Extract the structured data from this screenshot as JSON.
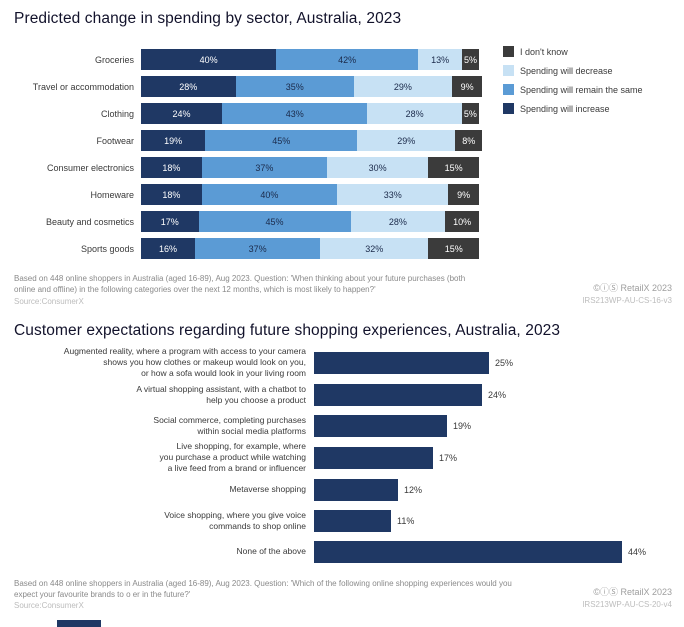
{
  "colors": {
    "increase": "#1f3864",
    "remain": "#5b9bd5",
    "decrease": "#c7e1f4",
    "dont_know": "#3b3b3b",
    "bar": "#1f3864"
  },
  "chart1": {
    "title": "Predicted change in spending by sector, Australia, 2023",
    "footnote": "Based on 448 online shoppers in Australia (aged 16-89), Aug 2023. Question: 'When thinking about your future purchases (both online and offline) in the following categories over the next 12 months, which is most likely to happen?'",
    "source": "Source:ConsumerX",
    "attribution": "©ⓘⓈ RetailX 2023",
    "code": "IRS213WP-AU-CS-16-v3"
  },
  "chart2": {
    "title": "Customer expectations regarding future shopping experiences, Australia, 2023",
    "footnote": "Based on 448 online shoppers in Australia (aged 16-89), Aug 2023. Question: 'Which of the following online shopping experiences would you expect your favourite brands to o er in the future?'",
    "source": "Source:ConsumerX",
    "attribution": "©ⓘⓈ RetailX 2023",
    "code": "IRS213WP-AU-CS-20-v4"
  },
  "chart_data": [
    {
      "type": "bar",
      "subtype": "horizontal-stacked-100",
      "title": "Predicted change in spending by sector, Australia, 2023",
      "categories": [
        "Groceries",
        "Travel or accommodation",
        "Clothing",
        "Footwear",
        "Consumer electronics",
        "Homeware",
        "Beauty and cosmetics",
        "Sports goods"
      ],
      "series": [
        {
          "name": "Spending will increase",
          "color": "#1f3864",
          "text_color": "#ffffff",
          "values": [
            40,
            28,
            24,
            19,
            18,
            18,
            17,
            16
          ]
        },
        {
          "name": "Spending will remain the same",
          "color": "#5b9bd5",
          "text_color": "#1b2a4a",
          "values": [
            42,
            35,
            43,
            45,
            37,
            40,
            45,
            37
          ]
        },
        {
          "name": "Spending will decrease",
          "color": "#c7e1f4",
          "text_color": "#1b2a4a",
          "values": [
            13,
            29,
            28,
            29,
            30,
            33,
            28,
            32
          ]
        },
        {
          "name": "I don't know",
          "color": "#3b3b3b",
          "text_color": "#ffffff",
          "values": [
            5,
            9,
            5,
            8,
            15,
            9,
            10,
            15
          ]
        }
      ],
      "legend": [
        {
          "label": "I don't know",
          "color": "#3b3b3b"
        },
        {
          "label": "Spending will decrease",
          "color": "#c7e1f4"
        },
        {
          "label": "Spending will remain the same",
          "color": "#5b9bd5"
        },
        {
          "label": "Spending will increase",
          "color": "#1f3864"
        }
      ],
      "legend_position": "top-right",
      "value_suffix": "%",
      "xlim": [
        0,
        100
      ]
    },
    {
      "type": "bar",
      "subtype": "horizontal",
      "title": "Customer expectations regarding future shopping experiences, Australia, 2023",
      "categories": [
        "Augmented reality, where a program with access to your camera shows you how clothes or makeup would look on you, or how a sofa would look in your living room",
        "A virtual shopping assistant, with a chatbot to help you choose a product",
        "Social commerce, completing purchases within social media platforms",
        "Live shopping, for example, where you purchase a product while watching a live feed from a brand or influencer",
        "Metaverse shopping",
        "Voice shopping, where you give voice commands to shop online",
        "None of the above"
      ],
      "categories_lines": [
        [
          "Augmented reality, where a program with access to  your camera",
          "shows you how clothes or makeup would look on you,",
          "or how a sofa would look in  your living room"
        ],
        [
          "A virtual shopping assistant, with a chatbot to",
          "help you choose a product"
        ],
        [
          "Social commerce, completing purchases",
          "within  social media platforms"
        ],
        [
          "Live shopping, for example, where",
          "you purchase a  product while watching",
          "a live feed from a brand or influencer"
        ],
        [
          "Metaverse shopping"
        ],
        [
          "Voice shopping, where you give voice",
          "commands to  shop online"
        ],
        [
          "None of the above"
        ]
      ],
      "values": [
        25,
        24,
        19,
        17,
        12,
        11,
        44
      ],
      "color": "#1f3864",
      "value_suffix": "%",
      "xlim": [
        0,
        50
      ]
    }
  ]
}
